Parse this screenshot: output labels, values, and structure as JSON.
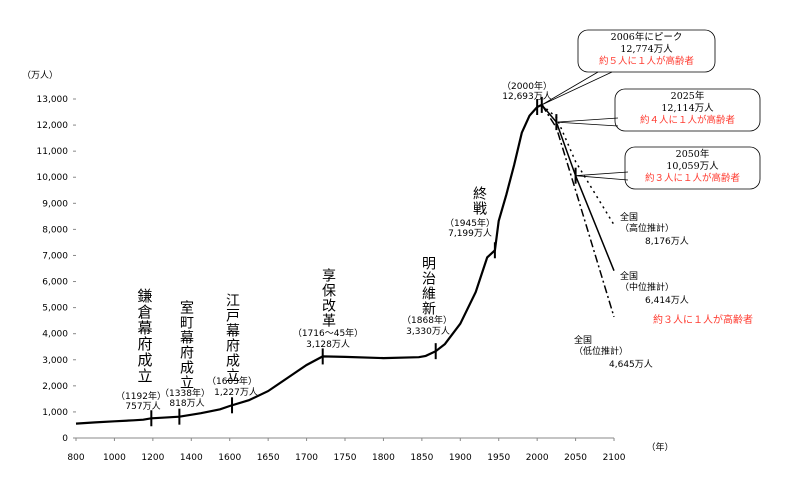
{
  "chart_data": {
    "type": "line",
    "title": "",
    "ylabel": "（万人）",
    "xlabel": "（年）",
    "ylim": [
      0,
      13000
    ],
    "y_ticks": [
      "0",
      "1,000",
      "2,000",
      "3,000",
      "4,000",
      "5,000",
      "6,000",
      "7,000",
      "8,000",
      "9,000",
      "10,000",
      "11,000",
      "12,000",
      "13,000"
    ],
    "x_ticks": [
      "800",
      "1000",
      "1200",
      "1400",
      "1600",
      "1650",
      "1700",
      "1750",
      "1800",
      "1850",
      "1900",
      "1950",
      "2000",
      "2050",
      "2100"
    ],
    "grid": false,
    "series": [
      {
        "style": "solid",
        "x": [
          800,
          900,
          1000,
          1100,
          1150,
          1192,
          1250,
          1338,
          1450,
          1550,
          1600,
          1625,
          1650,
          1675,
          1700,
          1721,
          1750,
          1800,
          1846,
          1855,
          1868,
          1880,
          1900,
          1920,
          1935,
          1945,
          1950,
          1960,
          1970,
          1980,
          1990,
          2000,
          2006
        ],
        "y": [
          551,
          600,
          640,
          680,
          700,
          757,
          780,
          818,
          950,
          1100,
          1227,
          1450,
          1800,
          2300,
          2800,
          3128,
          3110,
          3065,
          3100,
          3150,
          3330,
          3600,
          4385,
          5596,
          6925,
          7199,
          8320,
          9342,
          10467,
          11706,
          12361,
          12693,
          12774
        ]
      },
      {
        "name": "全国（高位推計）",
        "style": "dotted",
        "x": [
          2006,
          2025,
          2050,
          2100
        ],
        "y": [
          12774,
          12300,
          10600,
          8176
        ]
      },
      {
        "name": "全国（中位推計）",
        "style": "solid",
        "x": [
          2006,
          2025,
          2050,
          2100
        ],
        "y": [
          12774,
          12114,
          10059,
          6414
        ]
      },
      {
        "name": "全国（低位推計）",
        "style": "dashdot",
        "x": [
          2006,
          2025,
          2050,
          2100
        ],
        "y": [
          12774,
          11900,
          9500,
          4645
        ]
      }
    ],
    "markers": [
      1192,
      1338,
      1603,
      1721,
      1868,
      1945,
      2000,
      2006,
      2025,
      2050
    ],
    "events": [
      {
        "title": "鎌倉幕府成立",
        "year": "（1192年）",
        "pop": "757万人"
      },
      {
        "title": "室町幕府成立",
        "year": "（1338年）",
        "pop": "818万人"
      },
      {
        "title": "江戸幕府成立",
        "year": "（1603年）",
        "pop": "1,227万人"
      },
      {
        "title": "享保改革",
        "year": "（1716～45年）",
        "pop": "3,128万人"
      },
      {
        "title": "明治維新",
        "year": "（1868年）",
        "pop": "3,330万人"
      },
      {
        "title": "終戦",
        "year": "（1945年）",
        "pop": "7,199万人"
      }
    ],
    "point_2000": {
      "year": "（2000年）",
      "pop": "12,693万人"
    },
    "callouts": [
      {
        "line1": "2006年にピーク",
        "line2": "12,774万人",
        "line3": "約５人に１人が高齢者"
      },
      {
        "line1": "2025年",
        "line2": "12,114万人",
        "line3": "約４人に１人が高齢者"
      },
      {
        "line1": "2050年",
        "line2": "10,059万人",
        "line3": "約３人に１人が高齢者"
      }
    ],
    "projections": [
      {
        "line1": "全国",
        "line2": "（高位推計）",
        "pop": "8,176万人"
      },
      {
        "line1": "全国",
        "line2": "（中位推計）",
        "pop": "6,414万人",
        "note": "約３人に１人が高齢者"
      },
      {
        "line1": "全国",
        "line2": "（低位推計）",
        "pop": "4,645万人"
      }
    ],
    "colors": {
      "line": "#000000",
      "highlight": "#ff3b30",
      "axis": "#888888"
    }
  }
}
